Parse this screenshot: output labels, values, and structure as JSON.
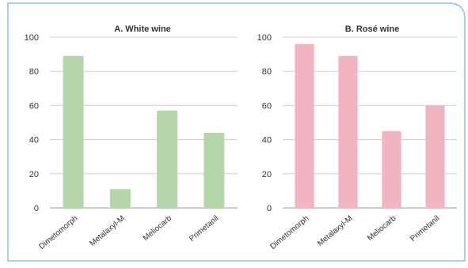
{
  "chart_data": [
    {
      "type": "bar",
      "title": "A. White wine",
      "categories": [
        "Dimetomorph",
        "Metalaxyl-M",
        "Meliocarb",
        "Primetanil"
      ],
      "values": [
        89,
        11,
        57,
        44
      ],
      "ylim": [
        0,
        100
      ],
      "yticks": [
        0,
        20,
        40,
        60,
        80,
        100
      ],
      "xlabel": "",
      "ylabel": "",
      "bar_color": "#b4d6a9",
      "grid": "horizontal"
    },
    {
      "type": "bar",
      "title": "B. Rosé wine",
      "categories": [
        "Dimetomorph",
        "Metalaxyl-M",
        "Meliocarb",
        "Primetanil"
      ],
      "values": [
        96,
        89,
        45,
        60
      ],
      "ylim": [
        0,
        100
      ],
      "yticks": [
        0,
        20,
        40,
        60,
        80,
        100
      ],
      "xlabel": "",
      "ylabel": "",
      "bar_color": "#f1b5c1",
      "grid": "horizontal"
    }
  ],
  "colors": {
    "frame_border": "#88c4e6",
    "gridline": "#cfcfcf",
    "axis": "#9a9a9a",
    "text": "#333333"
  }
}
